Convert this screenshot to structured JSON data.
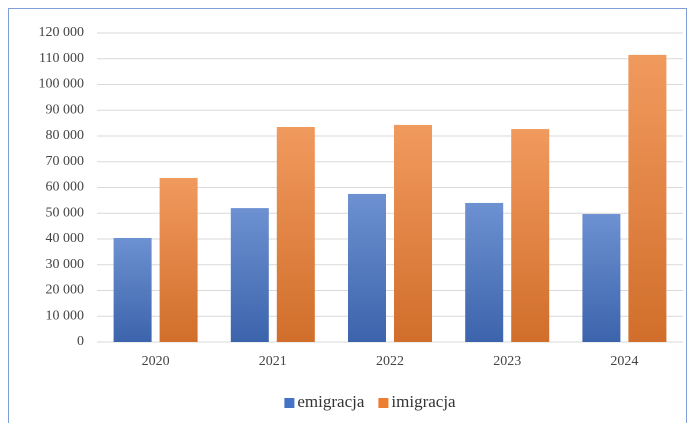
{
  "chart_data": {
    "type": "bar",
    "categories": [
      "2020",
      "2021",
      "2022",
      "2023",
      "2024"
    ],
    "series": [
      {
        "name": "emigracja",
        "color": "#4472c4",
        "values": [
          40400,
          52000,
          57500,
          54000,
          49700
        ]
      },
      {
        "name": "imigracja",
        "color": "#ed7d31",
        "values": [
          63700,
          83500,
          84300,
          82700,
          111500
        ]
      }
    ],
    "ylim": [
      0,
      120000
    ],
    "yticks": [
      0,
      {
        "value": 10000,
        "label": "10 000"
      },
      {
        "value": 20000,
        "label": "20 000"
      },
      {
        "value": 30000,
        "label": "30 000"
      },
      {
        "value": 40000,
        "label": "40 000"
      },
      {
        "value": 50000,
        "label": "50 000"
      },
      {
        "value": 60000,
        "label": "60 000"
      },
      {
        "value": 70000,
        "label": "70 000"
      },
      {
        "value": 80000,
        "label": "80 000"
      },
      {
        "value": 90000,
        "label": "90 000"
      },
      {
        "value": 100000,
        "label": "100 000"
      },
      {
        "value": 110000,
        "label": "110 000"
      },
      {
        "value": 120000,
        "label": "120 000"
      }
    ],
    "grid": true,
    "legend": "bottom"
  }
}
